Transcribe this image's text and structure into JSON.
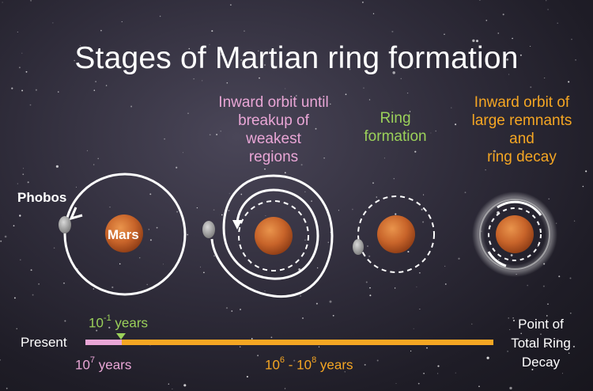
{
  "title": "Stages of Martian ring formation",
  "stages": [
    {
      "line1": "Inward orbit until",
      "line2": "breakup of",
      "line3": "weakest",
      "line4": "regions"
    },
    {
      "line1": "Ring",
      "line2": "formation"
    },
    {
      "line1": "Inward orbit of",
      "line2": "large remnants",
      "line3": "and",
      "line4": "ring decay"
    }
  ],
  "labels": {
    "phobos": "Phobos",
    "mars": "Mars"
  },
  "timeline": {
    "present": "Present",
    "end_line1": "Point of",
    "end_line2": "Total Ring",
    "end_line3": "Decay",
    "short_base": "10",
    "short_exp": "-1",
    "short_unit": " years",
    "pink_base": "10",
    "pink_exp": "7",
    "pink_unit": " years",
    "range_base1": "10",
    "range_exp1": "6",
    "range_sep": " - 10",
    "range_exp2": "8",
    "range_unit": " years"
  },
  "colors": {
    "pink": "#e9a6d6",
    "green": "#9bd15a",
    "orange": "#f5a623",
    "mars": "#c8642a"
  }
}
